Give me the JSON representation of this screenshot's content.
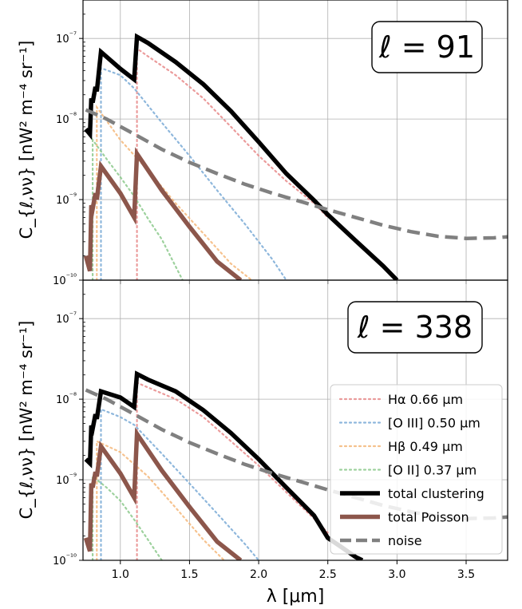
{
  "chart_data": {
    "type": "line",
    "x_label": "λ [μm]",
    "y_label": "C_{ℓ,νν} [nW² m⁻⁴ sr⁻¹]",
    "y_scale": "log",
    "x_range": [
      0.73,
      3.8
    ],
    "y_range": [
      1e-10,
      3e-07
    ],
    "grid": true,
    "x_ticks": [
      1.0,
      1.5,
      2.0,
      2.5,
      3.0,
      3.5
    ],
    "x_tick_labels": [
      "1.0",
      "1.5",
      "2.0",
      "2.5",
      "3.0",
      "3.5"
    ],
    "y_ticks": [
      1e-10,
      1e-09,
      1e-08,
      1e-07
    ],
    "y_tick_labels": [
      "10⁻¹⁰",
      "10⁻⁹",
      "10⁻⁸",
      "10⁻⁷"
    ],
    "legend_position": "lower-right (bottom panel)",
    "legend": [
      {
        "label": "Hα 0.66 μm",
        "color": "#e88a8a",
        "style": "dotted"
      },
      {
        "label": "[O III] 0.50 μm",
        "color": "#7aaad6",
        "style": "dotted"
      },
      {
        "label": "Hβ 0.49 μm",
        "color": "#f4b77a",
        "style": "dotted"
      },
      {
        "label": "[O II] 0.37 μm",
        "color": "#8cc98c",
        "style": "dotted"
      },
      {
        "label": "total clustering",
        "color": "#000000",
        "style": "solid"
      },
      {
        "label": "total Poisson",
        "color": "#8c564b",
        "style": "solid"
      },
      {
        "label": "noise",
        "color": "#808080",
        "style": "dashed"
      }
    ],
    "panels": [
      {
        "annotation": "ℓ = 91",
        "series": [
          {
            "key": "ha",
            "color": "#e88a8a",
            "style": "dotted",
            "x": [
              1.12,
              1.12,
              1.2,
              1.4,
              1.6,
              1.8,
              2.0,
              2.2,
              2.4,
              2.5
            ],
            "y": [
              1e-10,
              7.5e-08,
              6e-08,
              3.5e-08,
              1.8e-08,
              8e-09,
              3.5e-09,
              1.7e-09,
              9e-10,
              6e-10
            ]
          },
          {
            "key": "o3",
            "color": "#7aaad6",
            "style": "dotted",
            "x": [
              0.86,
              0.86,
              1.0,
              1.1,
              1.3,
              1.5,
              1.7,
              1.9,
              2.1,
              2.2
            ],
            "y": [
              1e-10,
              4.3e-08,
              3.5e-08,
              2.4e-08,
              9e-09,
              3.5e-09,
              1.3e-09,
              5e-10,
              1.8e-10,
              1e-10
            ]
          },
          {
            "key": "hb",
            "color": "#f4b77a",
            "style": "dotted",
            "x": [
              0.83,
              0.83,
              1.0,
              1.2,
              1.4,
              1.6,
              1.8,
              1.95
            ],
            "y": [
              1e-10,
              1.4e-08,
              5.5e-09,
              2.3e-09,
              9e-10,
              3.8e-10,
              1.6e-10,
              1e-10
            ]
          },
          {
            "key": "o2",
            "color": "#8cc98c",
            "style": "dotted",
            "x": [
              0.8,
              0.8,
              0.9,
              1.0,
              1.1,
              1.2,
              1.3,
              1.45
            ],
            "y": [
              1e-10,
              5.5e-09,
              3.2e-09,
              1.9e-09,
              1.1e-09,
              5.8e-10,
              3.2e-10,
              1e-10
            ]
          },
          {
            "key": "clustering",
            "color": "#000000",
            "style": "solid",
            "x": [
              0.75,
              0.78,
              0.79,
              0.8,
              0.82,
              0.83,
              0.86,
              1.0,
              1.1,
              1.12,
              1.2,
              1.4,
              1.6,
              1.8,
              2.0,
              2.2,
              2.4,
              2.5,
              2.7,
              2.9,
              3.0
            ],
            "y": [
              7.5e-09,
              6.5e-09,
              1.8e-08,
              1.6e-08,
              2.5e-08,
              2.2e-08,
              6.8e-08,
              4.2e-08,
              3.1e-08,
              1.05e-07,
              8.8e-08,
              5.1e-08,
              2.7e-08,
              1.25e-08,
              5.2e-09,
              2.1e-09,
              9.8e-10,
              6.5e-10,
              3.1e-10,
              1.5e-10,
              1e-10
            ]
          },
          {
            "key": "poisson",
            "color": "#8c564b",
            "style": "solid",
            "x": [
              0.75,
              0.78,
              0.79,
              0.8,
              0.82,
              0.83,
              0.86,
              1.0,
              1.1,
              1.12,
              1.3,
              1.5,
              1.7,
              1.87
            ],
            "y": [
              2e-10,
              1.3e-10,
              8.5e-10,
              7.7e-10,
              1.2e-09,
              1e-09,
              2.6e-09,
              1.2e-09,
              6e-10,
              3.7e-09,
              1.3e-09,
              4.6e-10,
              1.7e-10,
              1e-10
            ]
          },
          {
            "key": "noise",
            "color": "#808080",
            "style": "dashed",
            "x": [
              0.75,
              0.9,
              1.1,
              1.3,
              1.5,
              1.7,
              1.9,
              2.1,
              2.3,
              2.5,
              2.7,
              2.9,
              3.1,
              3.3,
              3.5,
              3.7,
              3.8
            ],
            "y": [
              1.3e-08,
              1e-08,
              6.5e-09,
              4.2e-09,
              2.9e-09,
              2.1e-09,
              1.55e-09,
              1.2e-09,
              9.5e-10,
              7.5e-10,
              6e-10,
              4.8e-10,
              4e-10,
              3.5e-10,
              3.3e-10,
              3.35e-10,
              3.45e-10
            ]
          }
        ]
      },
      {
        "annotation": "ℓ = 338",
        "series": [
          {
            "key": "ha",
            "color": "#e88a8a",
            "style": "dotted",
            "x": [
              1.12,
              1.12,
              1.2,
              1.4,
              1.6,
              1.8,
              2.0,
              2.2,
              2.4,
              2.5
            ],
            "y": [
              1e-10,
              1.6e-08,
              1.4e-08,
              1e-08,
              6e-09,
              3e-09,
              1.5e-09,
              7e-10,
              3.3e-10,
              2.2e-10
            ]
          },
          {
            "key": "o3",
            "color": "#7aaad6",
            "style": "dotted",
            "x": [
              0.86,
              0.86,
              1.0,
              1.1,
              1.3,
              1.5,
              1.7,
              1.9,
              2.0
            ],
            "y": [
              1e-10,
              7.5e-09,
              6e-09,
              4.8e-09,
              2.1e-09,
              9e-10,
              3.8e-10,
              1.6e-10,
              1e-10
            ]
          },
          {
            "key": "hb",
            "color": "#f4b77a",
            "style": "dotted",
            "x": [
              0.83,
              0.83,
              1.0,
              1.2,
              1.4,
              1.6,
              1.75
            ],
            "y": [
              1e-10,
              3e-09,
              2.2e-09,
              1.1e-09,
              4.5e-10,
              1.8e-10,
              1e-10
            ]
          },
          {
            "key": "o2",
            "color": "#8cc98c",
            "style": "dotted",
            "x": [
              0.8,
              0.8,
              0.9,
              1.0,
              1.1,
              1.2,
              1.3
            ],
            "y": [
              1e-10,
              1.1e-09,
              8e-10,
              5.5e-10,
              3.2e-10,
              1.8e-10,
              1e-10
            ]
          },
          {
            "key": "clustering",
            "color": "#000000",
            "style": "solid",
            "x": [
              0.75,
              0.78,
              0.79,
              0.8,
              0.82,
              0.83,
              0.86,
              1.0,
              1.1,
              1.12,
              1.2,
              1.4,
              1.6,
              1.8,
              2.0,
              2.2,
              2.4,
              2.5,
              2.6,
              2.7,
              2.75
            ],
            "y": [
              1.8e-09,
              1.6e-09,
              4.7e-09,
              4.3e-09,
              6.5e-09,
              5.7e-09,
              1.25e-08,
              1.05e-08,
              8e-09,
              2.05e-08,
              1.75e-08,
              1.25e-08,
              7.3e-09,
              3.8e-09,
              1.8e-09,
              8e-10,
              3.6e-10,
              1.9e-10,
              1.45e-10,
              1.1e-10,
              1e-10
            ]
          },
          {
            "key": "poisson",
            "color": "#8c564b",
            "style": "solid",
            "x": [
              0.75,
              0.78,
              0.79,
              0.8,
              0.82,
              0.83,
              0.86,
              1.0,
              1.1,
              1.12,
              1.3,
              1.5,
              1.7,
              1.87
            ],
            "y": [
              1.9e-10,
              1.3e-10,
              9e-10,
              8e-10,
              1.25e-09,
              1.1e-09,
              2.6e-09,
              1.2e-09,
              6e-10,
              3.7e-09,
              1.3e-09,
              4.6e-10,
              1.7e-10,
              1e-10
            ]
          },
          {
            "key": "noise",
            "color": "#808080",
            "style": "dashed",
            "x": [
              0.75,
              0.9,
              1.1,
              1.3,
              1.5,
              1.7,
              1.9,
              2.1,
              2.3,
              2.5,
              2.7,
              2.9,
              3.1,
              3.3,
              3.5,
              3.7,
              3.8
            ],
            "y": [
              1.3e-08,
              1e-08,
              6.5e-09,
              4.2e-09,
              2.9e-09,
              2.1e-09,
              1.55e-09,
              1.2e-09,
              9.5e-10,
              7.5e-10,
              6e-10,
              4.8e-10,
              4e-10,
              3.5e-10,
              3.3e-10,
              3.35e-10,
              3.45e-10
            ]
          }
        ]
      }
    ]
  }
}
